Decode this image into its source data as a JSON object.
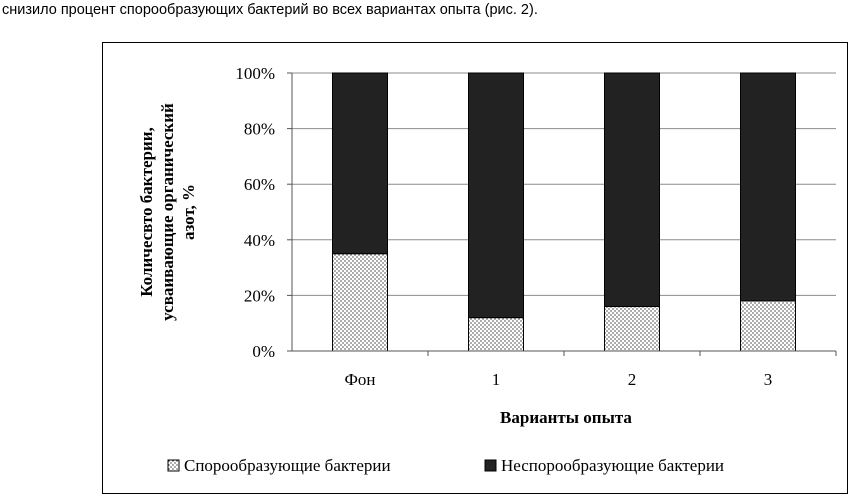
{
  "intro_text": "снизило процент спорообразующих бактерий во всех вариантах опыта (рис. 2).",
  "chart_data": {
    "type": "bar",
    "stacked": true,
    "title": "",
    "xlabel": "Варианты опыта",
    "ylabel_lines": [
      "Количесвто бактерии,",
      "усваивающие органический",
      "азот, %"
    ],
    "categories": [
      "Фон",
      "1",
      "2",
      "3"
    ],
    "ylim": [
      0,
      100
    ],
    "yticks": [
      0,
      20,
      40,
      60,
      80,
      100
    ],
    "ytick_labels": [
      "0%",
      "20%",
      "40%",
      "60%",
      "80%",
      "100%"
    ],
    "grid": true,
    "legend_position": "bottom",
    "series": [
      {
        "name": "Спорообразующие бактерии",
        "values": [
          35,
          12,
          16,
          18
        ],
        "pattern": "dotted",
        "color": "#ffffff"
      },
      {
        "name": "Неспорообразующие бактерии",
        "values": [
          65,
          88,
          84,
          82
        ],
        "pattern": "solid",
        "color": "#222222"
      }
    ]
  }
}
